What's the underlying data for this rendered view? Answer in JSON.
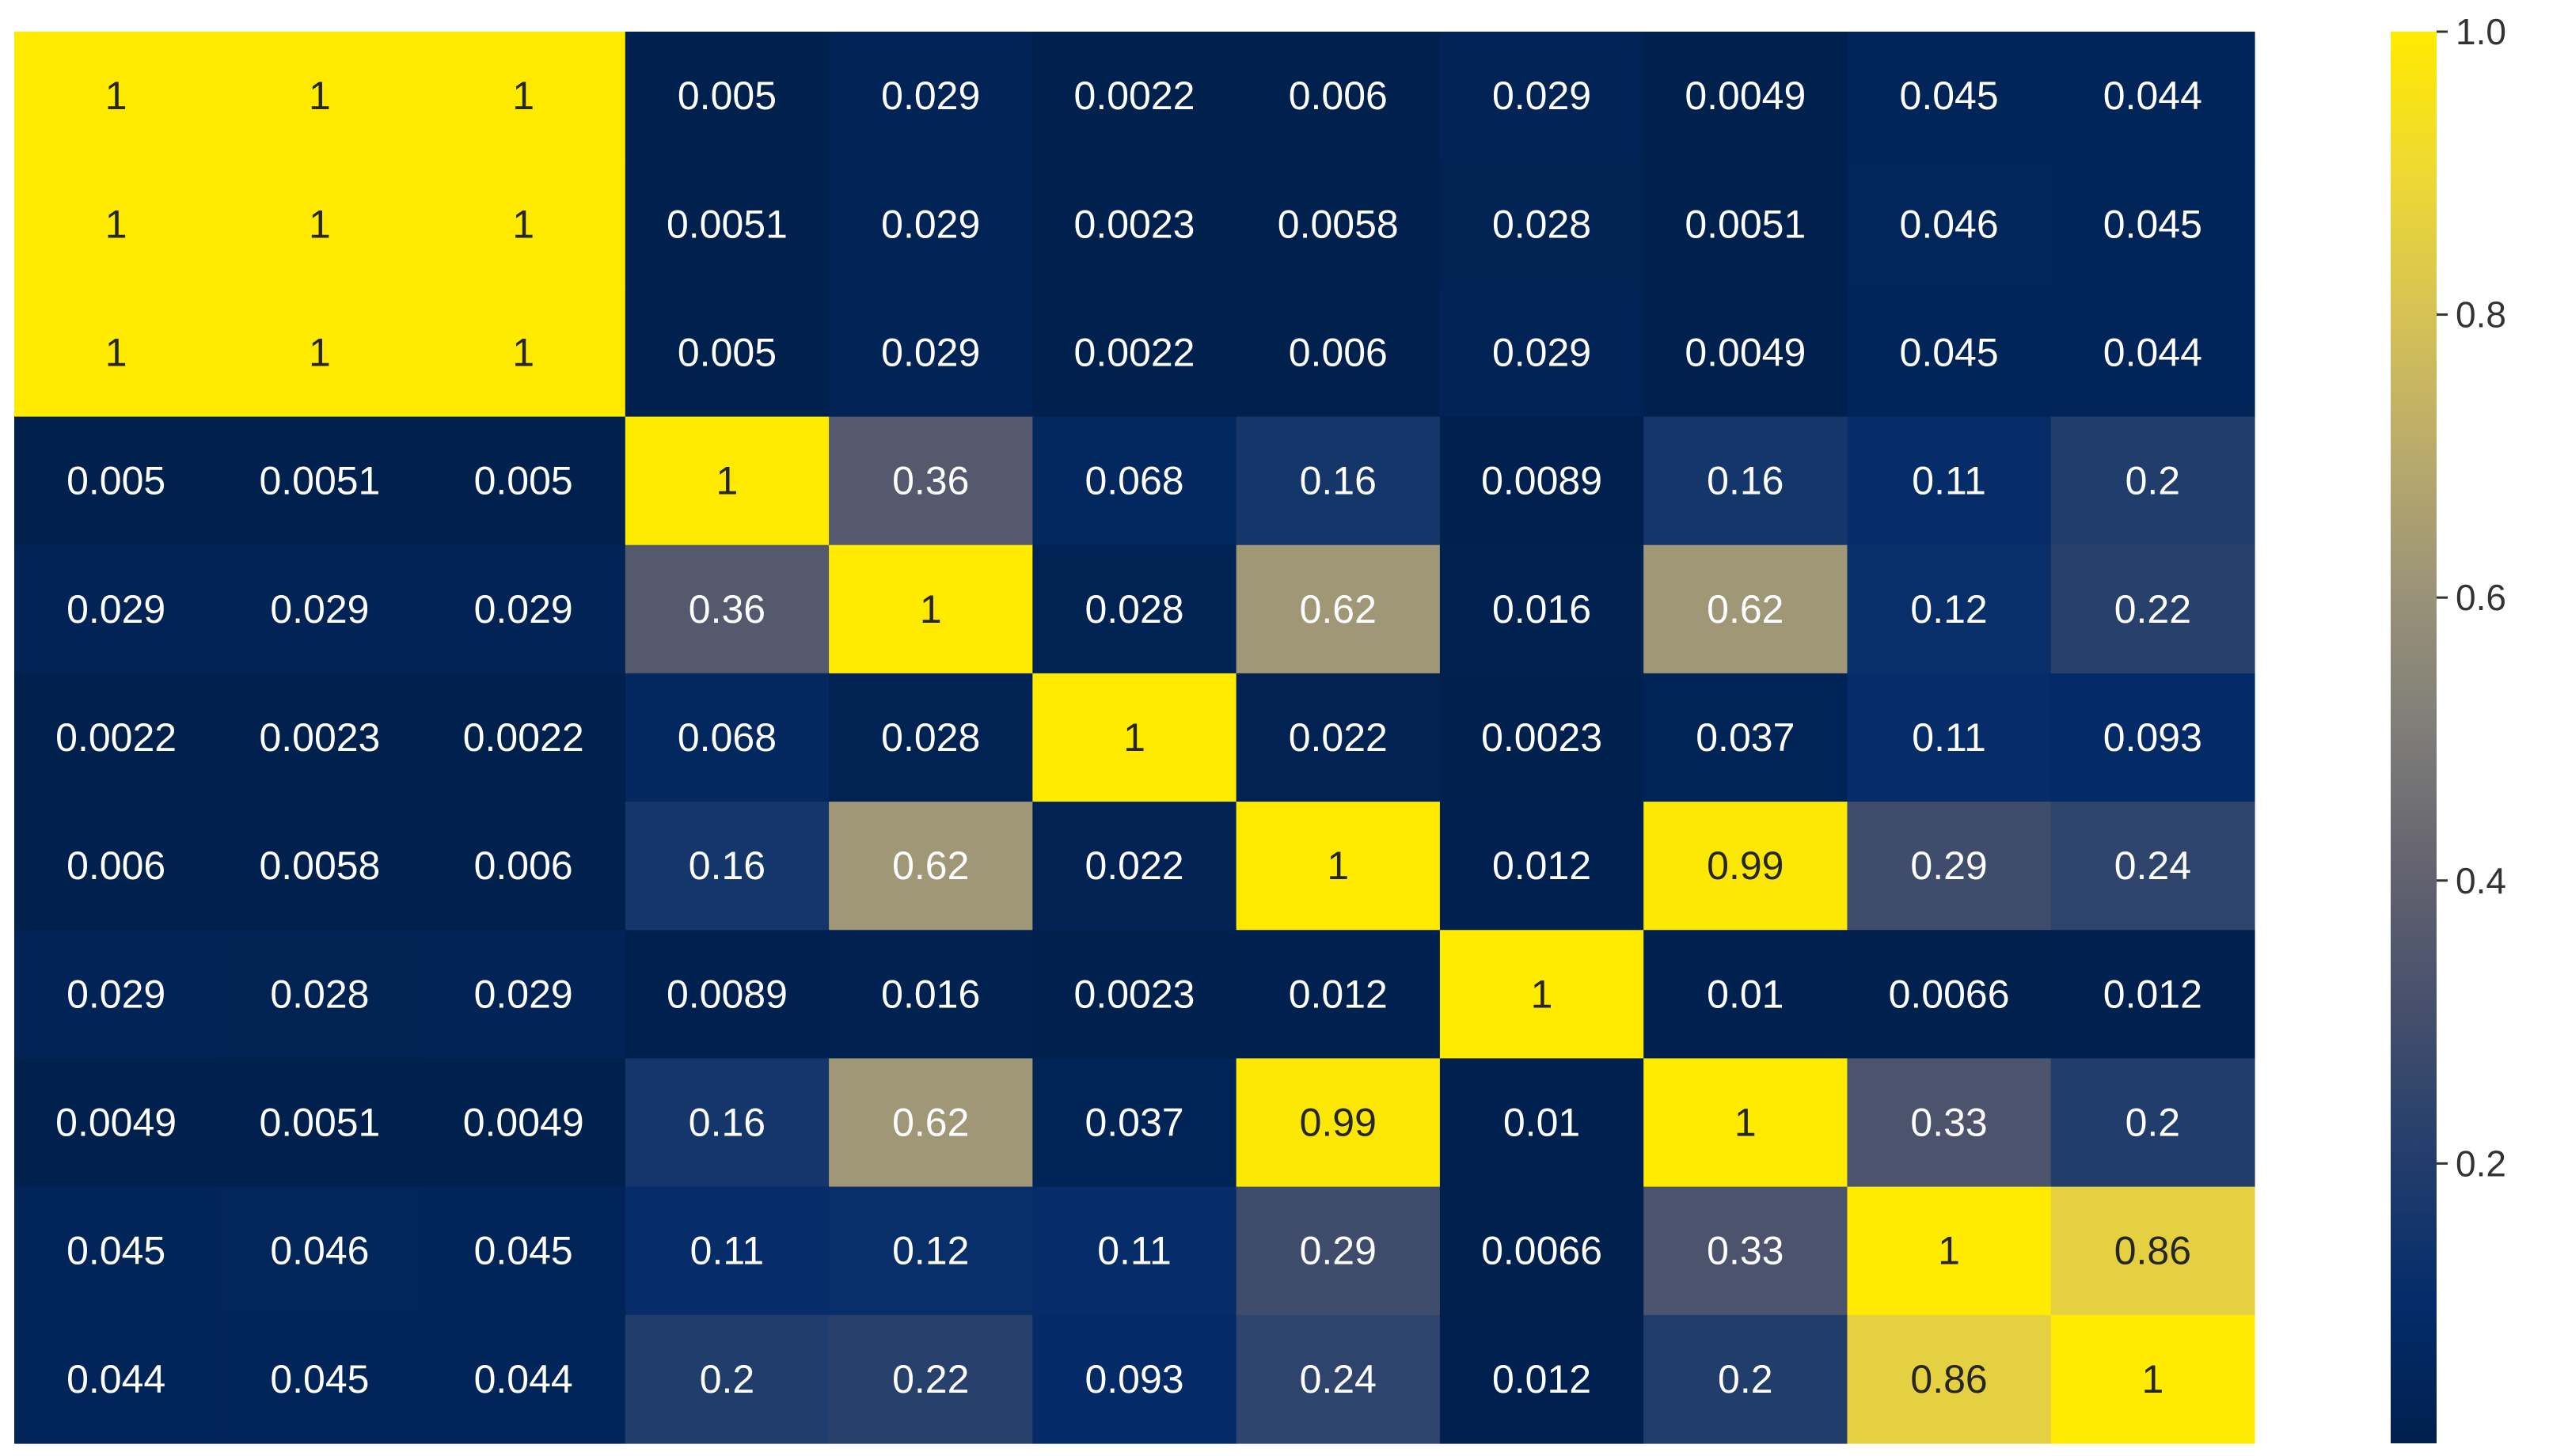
{
  "chart_data": {
    "type": "heatmap",
    "title": "",
    "xlabel": "",
    "ylabel": "",
    "row_labels": [],
    "col_labels": [],
    "annotations_shown": true,
    "vmin": 0.0022,
    "vmax": 1.0,
    "colormap": "cividis",
    "colorbar": {
      "ticks": [
        0.2,
        0.4,
        0.6,
        0.8,
        1.0
      ],
      "tick_labels": [
        "0.2",
        "0.4",
        "0.6",
        "0.8",
        "1.0"
      ]
    },
    "values": [
      [
        1,
        1,
        1,
        0.005,
        0.029,
        0.0022,
        0.006,
        0.029,
        0.0049,
        0.045,
        0.044
      ],
      [
        1,
        1,
        1,
        0.0051,
        0.029,
        0.0023,
        0.0058,
        0.028,
        0.0051,
        0.046,
        0.045
      ],
      [
        1,
        1,
        1,
        0.005,
        0.029,
        0.0022,
        0.006,
        0.029,
        0.0049,
        0.045,
        0.044
      ],
      [
        0.005,
        0.0051,
        0.005,
        1,
        0.36,
        0.068,
        0.16,
        0.0089,
        0.16,
        0.11,
        0.2
      ],
      [
        0.029,
        0.029,
        0.029,
        0.36,
        1,
        0.028,
        0.62,
        0.016,
        0.62,
        0.12,
        0.22
      ],
      [
        0.0022,
        0.0023,
        0.0022,
        0.068,
        0.028,
        1,
        0.022,
        0.0023,
        0.037,
        0.11,
        0.093
      ],
      [
        0.006,
        0.0058,
        0.006,
        0.16,
        0.62,
        0.022,
        1,
        0.012,
        0.99,
        0.29,
        0.24
      ],
      [
        0.029,
        0.028,
        0.029,
        0.0089,
        0.016,
        0.0023,
        0.012,
        1,
        0.01,
        0.0066,
        0.012
      ],
      [
        0.0049,
        0.0051,
        0.0049,
        0.16,
        0.62,
        0.037,
        0.99,
        0.01,
        1,
        0.33,
        0.2
      ],
      [
        0.045,
        0.046,
        0.045,
        0.11,
        0.12,
        0.11,
        0.29,
        0.0066,
        0.33,
        1,
        0.86
      ],
      [
        0.044,
        0.045,
        0.044,
        0.2,
        0.22,
        0.093,
        0.24,
        0.012,
        0.2,
        0.86,
        1
      ]
    ]
  }
}
